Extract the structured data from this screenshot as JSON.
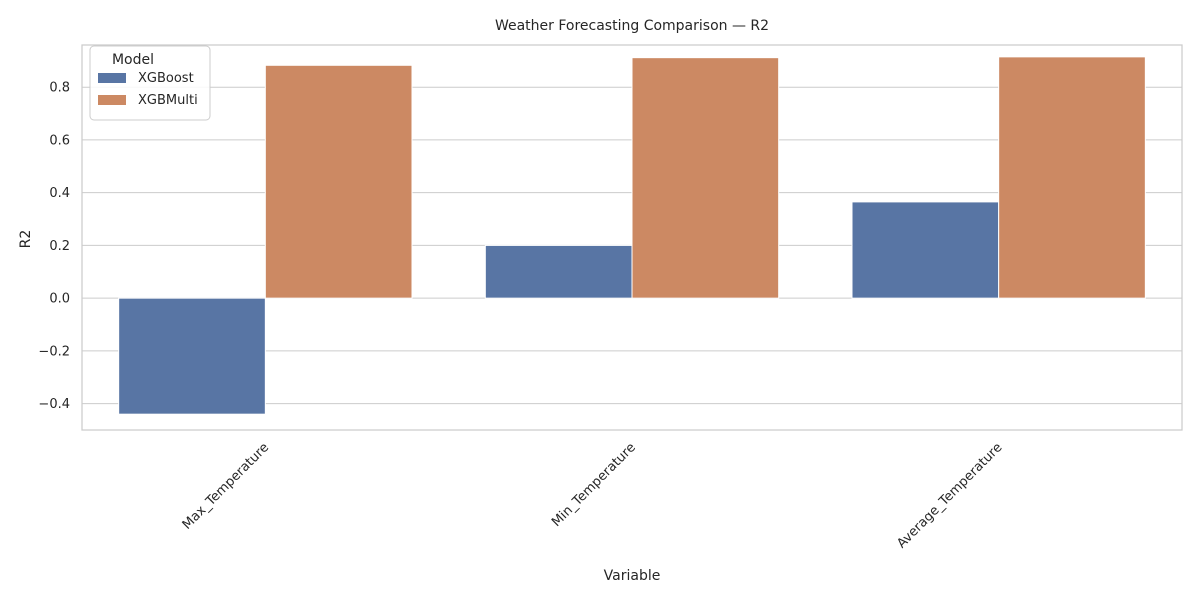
{
  "chart_data": {
    "type": "bar",
    "title": "Weather Forecasting Comparison — R2",
    "xlabel": "Variable",
    "ylabel": "R2",
    "categories": [
      "Max_Temperature",
      "Min_Temperature",
      "Average_Temperature"
    ],
    "series": [
      {
        "name": "XGBoost",
        "color": "#5875a4",
        "values": [
          -0.44,
          0.2,
          0.365
        ]
      },
      {
        "name": "XGBMulti",
        "color": "#cc8963",
        "values": [
          0.883,
          0.912,
          0.915
        ]
      }
    ],
    "ylim": [
      -0.5,
      0.96
    ],
    "yticks": [
      "−0.4",
      "−0.2",
      "0.0",
      "0.2",
      "0.4",
      "0.6",
      "0.8"
    ],
    "ytick_values": [
      -0.4,
      -0.2,
      0.0,
      0.2,
      0.4,
      0.6,
      0.8
    ],
    "grid": true,
    "legend": {
      "title": "Model",
      "position": "top-left"
    }
  }
}
